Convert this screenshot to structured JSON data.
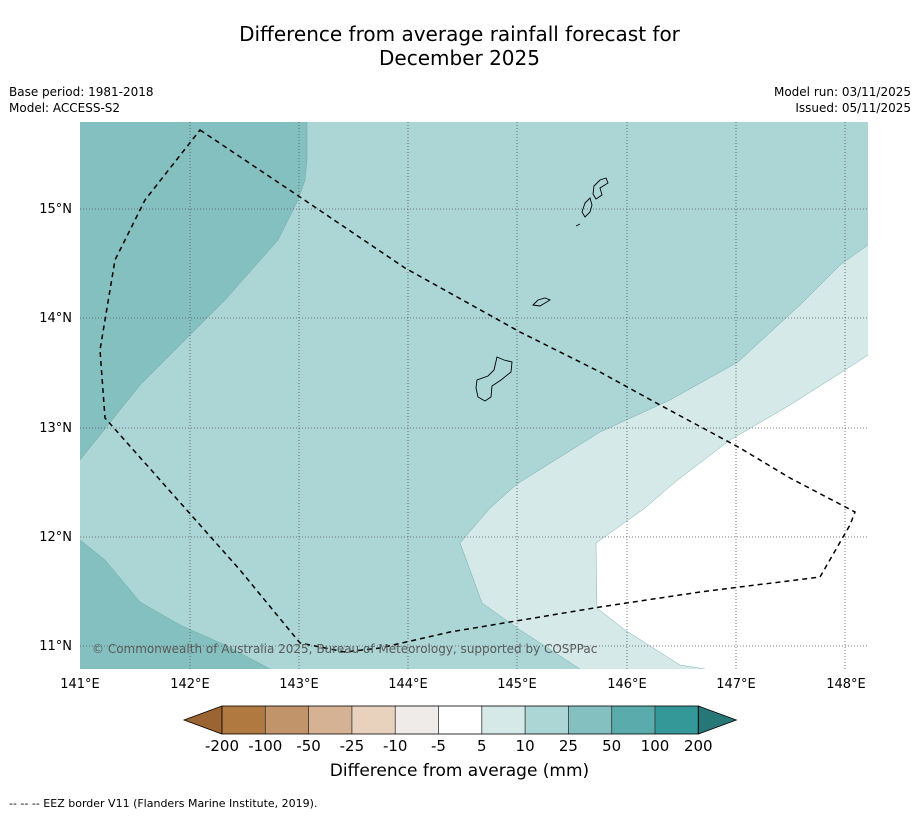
{
  "title_line1": "Difference from average rainfall forecast for",
  "title_line2": "December 2025",
  "meta_left": {
    "base_period": "Base period: 1981-2018",
    "model": "Model: ACCESS-S2"
  },
  "meta_right": {
    "model_run": "Model run: 03/11/2025",
    "issued": "Issued: 05/11/2025"
  },
  "map": {
    "lon_labels": [
      "141°E",
      "142°E",
      "143°E",
      "144°E",
      "145°E",
      "146°E",
      "147°E",
      "148°E"
    ],
    "lat_labels": [
      "15°N",
      "14°N",
      "13°N",
      "12°N",
      "11°N"
    ],
    "copyright": "© Commonwealth of Australia 2025, Bureau of Meteorology, supported by COSPPac"
  },
  "colorbar": {
    "ticks": [
      "-200",
      "-100",
      "-50",
      "-25",
      "-10",
      "-5",
      "5",
      "10",
      "25",
      "50",
      "100",
      "200"
    ],
    "colors": [
      "#9b6433",
      "#b07940",
      "#c2946a",
      "#d5b294",
      "#e8d1bd",
      "#efebe8",
      "#ffffff",
      "#d5e9e8",
      "#acd5d5",
      "#85c0c0",
      "#5aabab",
      "#349898",
      "#267878"
    ],
    "title": "Difference from average (mm)"
  },
  "legend_text": "--  --  -- EEZ border V11 (Flanders Marine Institute, 2019)."
}
